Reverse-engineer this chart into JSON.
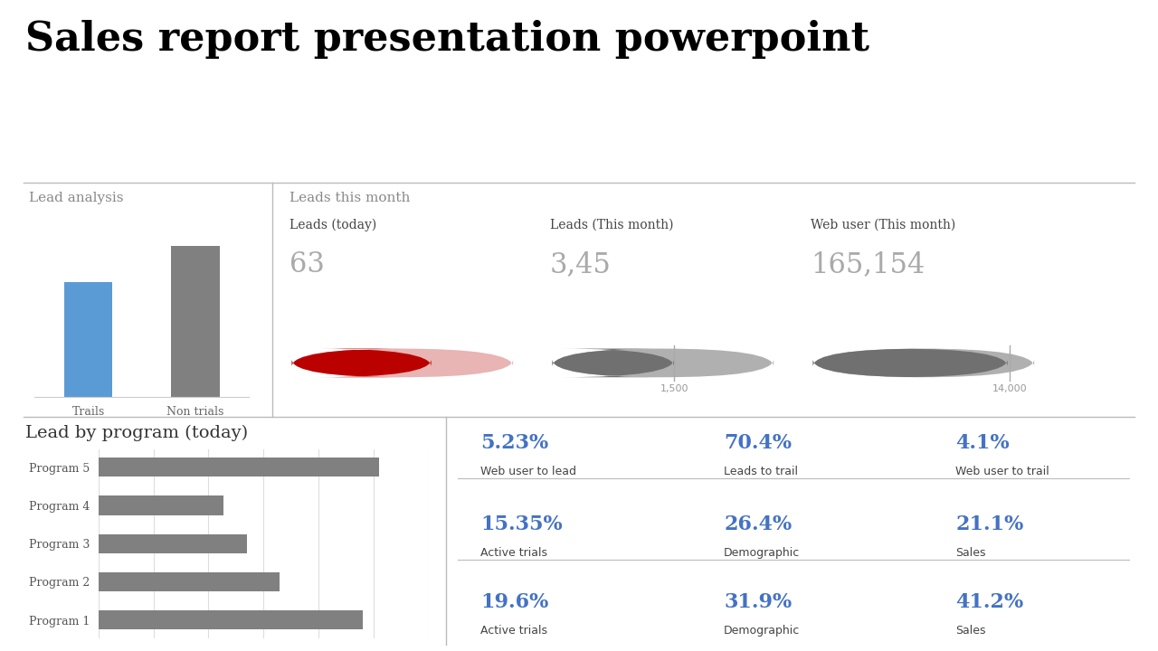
{
  "title": "Sales report presentation powerpoint",
  "title_fontsize": 32,
  "title_color": "#000000",
  "background_color": "#ffffff",
  "lead_analysis_title": "Lead analysis",
  "lead_analysis_categories": [
    "Trails",
    "Non trials"
  ],
  "lead_analysis_values": [
    65,
    85
  ],
  "lead_analysis_colors": [
    "#5b9bd5",
    "#808080"
  ],
  "leads_month_title": "Leads this month",
  "leads_today_label": "Leads (today)",
  "leads_today_value": "63",
  "leads_today_bar_filled": 0.63,
  "leads_today_bar_color_filled": "#bb0000",
  "leads_today_bar_color_empty": "#e8b4b4",
  "leads_month_label": "Leads (This month)",
  "leads_month_value": "3,45",
  "leads_month_bar_filled": 0.55,
  "leads_month_bar_color_filled": "#707070",
  "leads_month_bar_color_empty": "#b0b0b0",
  "leads_month_marker": "1,500",
  "web_user_label": "Web user (This month)",
  "web_user_value": "165,154",
  "web_user_bar_filled": 0.88,
  "web_user_bar_color_filled": "#707070",
  "web_user_bar_color_empty": "#b0b0b0",
  "web_user_marker": "14,000",
  "lead_program_title": "Lead by program (today)",
  "programs": [
    "Program 1",
    "Program 2",
    "Program 3",
    "Program 4",
    "Program 5"
  ],
  "program_values": [
    80,
    55,
    45,
    38,
    85
  ],
  "program_color": "#808080",
  "stats_row1": [
    {
      "value": "5.23%",
      "label": "Web user to lead"
    },
    {
      "value": "70.4%",
      "label": "Leads to trail"
    },
    {
      "value": "4.1%",
      "label": "Web user to trail"
    }
  ],
  "stats_row2": [
    {
      "value": "15.35%",
      "label": "Active trials"
    },
    {
      "value": "26.4%",
      "label": "Demographic"
    },
    {
      "value": "21.1%",
      "label": "Sales"
    }
  ],
  "stats_row3": [
    {
      "value": "19.6%",
      "label": "Active trials"
    },
    {
      "value": "31.9%",
      "label": "Demographic"
    },
    {
      "value": "41.2%",
      "label": "Sales"
    }
  ],
  "stats_value_color": "#4472c4",
  "stats_label_color": "#444444",
  "divider_color": "#bbbbbb",
  "section_divider_color": "#bbbbbb"
}
